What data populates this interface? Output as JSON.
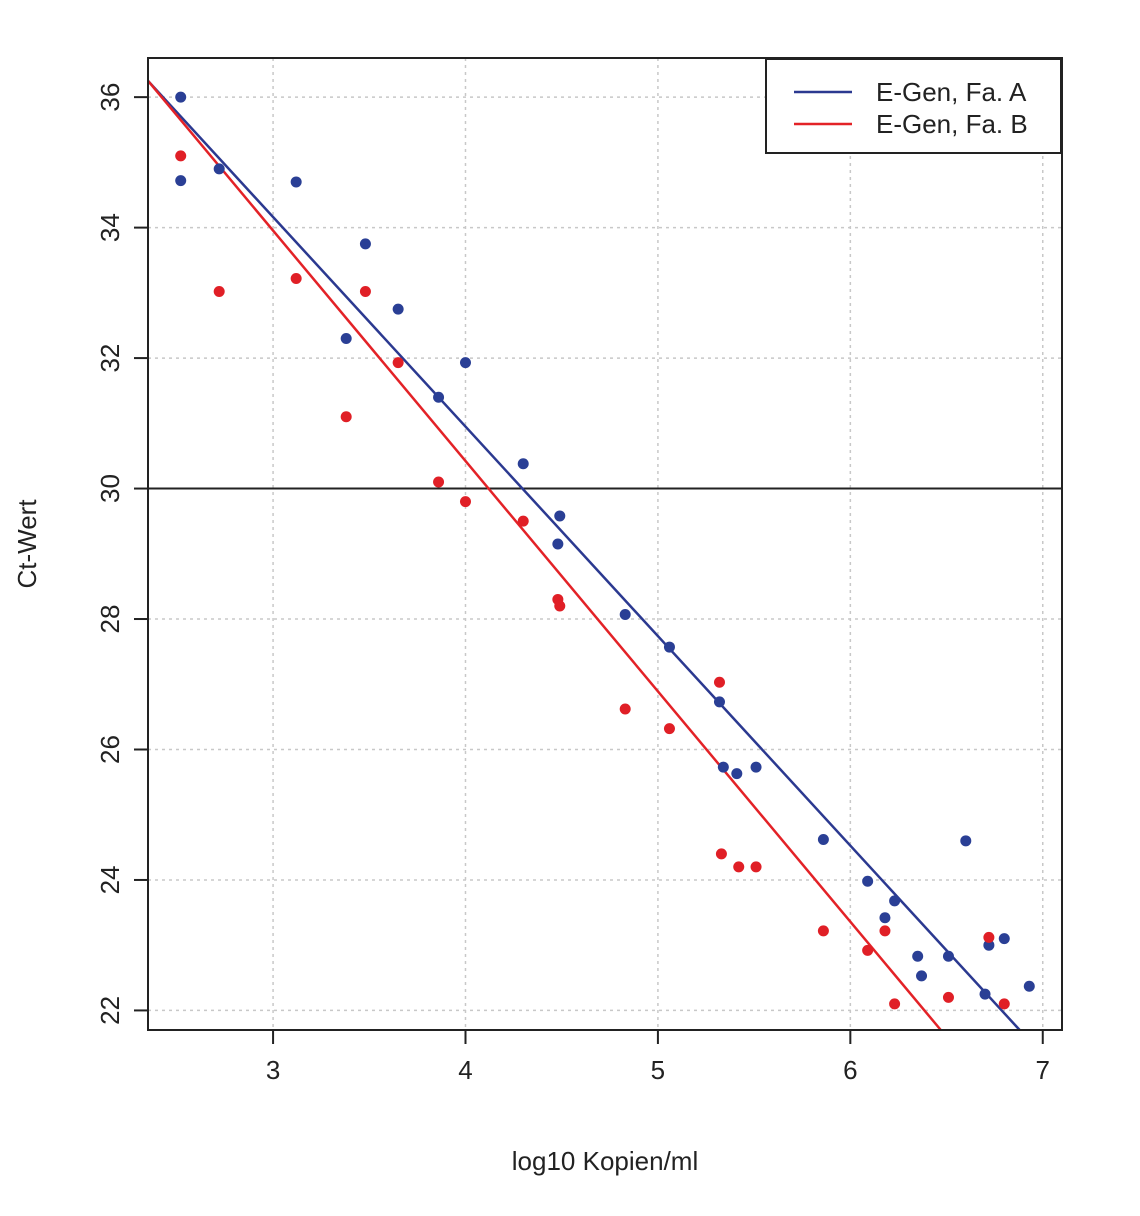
{
  "chart_data": {
    "type": "scatter",
    "xlabel": "log10 Kopien/ml",
    "ylabel": "Ct-Wert",
    "xlim": [
      2.35,
      7.1
    ],
    "ylim": [
      21.7,
      36.6
    ],
    "xticks": [
      3,
      4,
      5,
      6,
      7
    ],
    "yticks": [
      22,
      24,
      26,
      28,
      30,
      32,
      34,
      36
    ],
    "grid": true,
    "hline": 30,
    "legend_position": "top-right",
    "series": [
      {
        "name": "E-Gen, Fa. A",
        "color": "#2a3f95",
        "line_color": "#2b3990",
        "fit": {
          "x0": 2.35,
          "y0": 36.25,
          "x1": 6.88,
          "y1": 21.7
        },
        "points": [
          [
            2.52,
            36.0
          ],
          [
            2.52,
            34.72
          ],
          [
            2.72,
            34.9
          ],
          [
            3.12,
            34.7
          ],
          [
            3.48,
            33.75
          ],
          [
            3.38,
            32.3
          ],
          [
            3.65,
            32.75
          ],
          [
            3.86,
            31.4
          ],
          [
            4.0,
            31.93
          ],
          [
            4.3,
            30.38
          ],
          [
            4.49,
            29.58
          ],
          [
            4.48,
            29.15
          ],
          [
            4.83,
            28.07
          ],
          [
            5.06,
            27.57
          ],
          [
            5.32,
            26.73
          ],
          [
            5.34,
            25.73
          ],
          [
            5.41,
            25.63
          ],
          [
            5.51,
            25.73
          ],
          [
            5.86,
            24.62
          ],
          [
            6.09,
            23.98
          ],
          [
            6.18,
            23.42
          ],
          [
            6.23,
            23.68
          ],
          [
            6.35,
            22.83
          ],
          [
            6.37,
            22.53
          ],
          [
            6.51,
            22.83
          ],
          [
            6.6,
            24.6
          ],
          [
            6.7,
            22.25
          ],
          [
            6.72,
            23.0
          ],
          [
            6.8,
            23.1
          ],
          [
            6.93,
            22.37
          ]
        ]
      },
      {
        "name": "E-Gen, Fa. B",
        "color": "#e01f26",
        "line_color": "#e32227",
        "fit": {
          "x0": 2.35,
          "y0": 36.25,
          "x1": 6.47,
          "y1": 21.7
        },
        "points": [
          [
            2.52,
            35.1
          ],
          [
            2.72,
            33.02
          ],
          [
            3.12,
            33.22
          ],
          [
            3.48,
            33.02
          ],
          [
            3.38,
            31.1
          ],
          [
            3.65,
            31.93
          ],
          [
            3.86,
            30.1
          ],
          [
            4.0,
            29.8
          ],
          [
            4.3,
            29.5
          ],
          [
            4.48,
            28.3
          ],
          [
            4.49,
            28.2
          ],
          [
            4.83,
            26.62
          ],
          [
            5.06,
            26.32
          ],
          [
            5.32,
            27.03
          ],
          [
            5.33,
            24.4
          ],
          [
            5.42,
            24.2
          ],
          [
            5.51,
            24.2
          ],
          [
            5.86,
            23.22
          ],
          [
            6.09,
            22.92
          ],
          [
            6.18,
            23.22
          ],
          [
            6.23,
            22.1
          ],
          [
            6.51,
            22.2
          ],
          [
            6.72,
            23.12
          ],
          [
            6.8,
            22.1
          ]
        ]
      }
    ]
  }
}
